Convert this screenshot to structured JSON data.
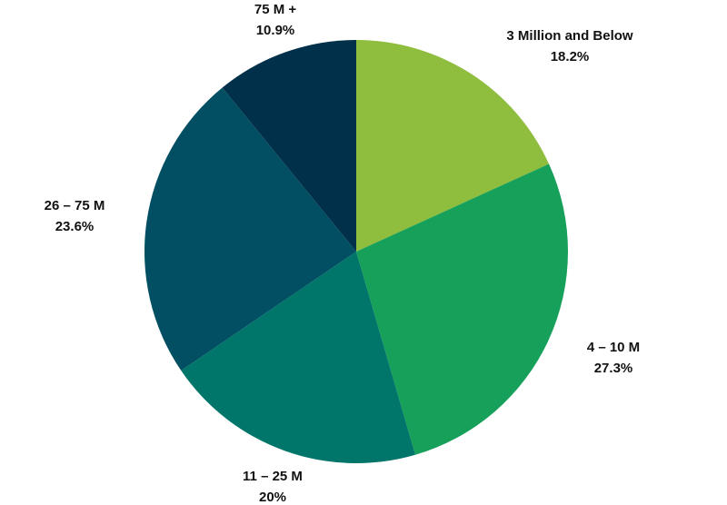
{
  "chart_data": {
    "type": "pie",
    "title": "",
    "slices": [
      {
        "label": "3 Million and Below",
        "value": 18.2,
        "value_label": "18.2%",
        "color": "#8fbd3e"
      },
      {
        "label": "4 – 10 M",
        "value": 27.3,
        "value_label": "27.3%",
        "color": "#16a05a"
      },
      {
        "label": "11 – 25 M",
        "value": 20.0,
        "value_label": "20%",
        "color": "#007569"
      },
      {
        "label": "26 – 75 M",
        "value": 23.6,
        "value_label": "23.6%",
        "color": "#024f63"
      },
      {
        "label": "75 M +",
        "value": 10.9,
        "value_label": "10.9%",
        "color": "#01304a"
      }
    ],
    "start_angle": "12 o'clock",
    "direction": "clockwise",
    "legend": "none",
    "data_labels": "outside slices, category name above percentage"
  }
}
